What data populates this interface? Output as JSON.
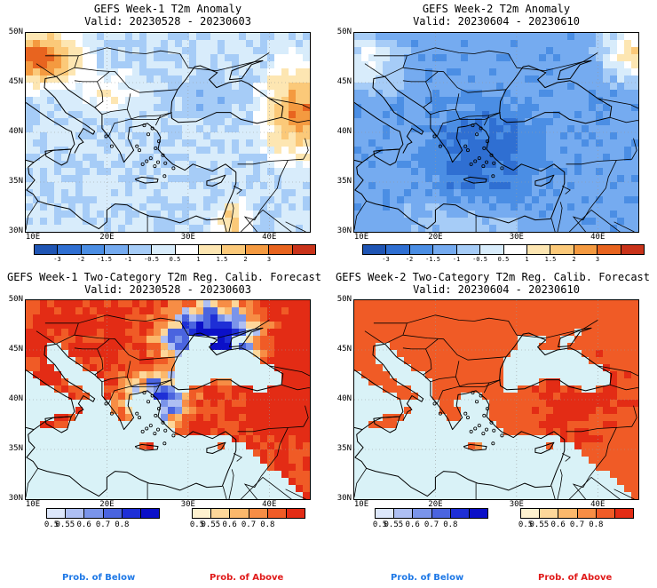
{
  "panels": [
    {
      "title": "GEFS Week-1 T2m Anomaly",
      "valid": "Valid: 20230528 - 20230603"
    },
    {
      "title": "GEFS Week-2 T2m Anomaly",
      "valid": "Valid: 20230604 - 20230610"
    },
    {
      "title": "GEFS Week-1 Two-Category T2m Reg. Calib. Forecast",
      "valid": "Valid: 20230528 - 20230603"
    },
    {
      "title": "GEFS Week-2 Two-Category T2m Reg. Calib. Forecast",
      "valid": "Valid: 20230604 - 20230610"
    }
  ],
  "lat_labels": [
    "50N",
    "45N",
    "40N",
    "35N",
    "30N"
  ],
  "lon_labels": [
    "10E",
    "20E",
    "30E",
    "40E"
  ],
  "anomaly_colorbar": {
    "labels": [
      "-3",
      "-2",
      "-1.5",
      "-1",
      "-0.5",
      "0.5",
      "1",
      "1.5",
      "2",
      "3"
    ],
    "colors": [
      "#1f55b4",
      "#2f6fd2",
      "#4b8ee4",
      "#75abf0",
      "#a6ccf7",
      "#d8ecfb",
      "#ffffff",
      "#fde6b2",
      "#fbc979",
      "#f49a40",
      "#e8641f",
      "#c9331a",
      "#a01010"
    ]
  },
  "prob_colorbar": {
    "below_labels": [
      "0.5",
      "0.55",
      "0.6",
      "0.7",
      "0.8"
    ],
    "above_labels": [
      "0.5",
      "0.55",
      "0.6",
      "0.7",
      "0.8"
    ],
    "below_colors": [
      "#dde7fb",
      "#aebff3",
      "#7a94ea",
      "#4a64df",
      "#1e2fd6",
      "#0b10c8"
    ],
    "above_colors": [
      "#fef1cf",
      "#fdd79a",
      "#fbb86c",
      "#f78d45",
      "#f05b26",
      "#e32c15"
    ]
  },
  "legend": {
    "below": "Prob. of Below",
    "above": "Prob. of Above",
    "below_color": "#1e78e6",
    "above_color": "#e01a1a"
  }
}
